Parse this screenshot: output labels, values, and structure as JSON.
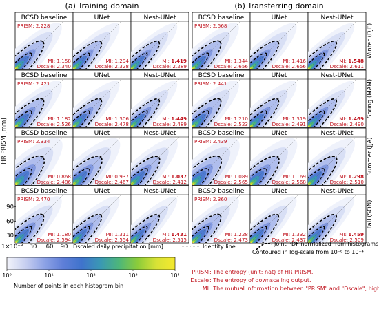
{
  "chart_data": {
    "type": "heatmap",
    "domains": [
      "(a) Training domain",
      "(b) Transferring domain"
    ],
    "methods": [
      "BCSD baseline",
      "UNet",
      "Nest-UNet"
    ],
    "seasons": [
      "Winter (DJF)",
      "Spring (MAM)",
      "Summer (JJA)",
      "Fall (SON)"
    ],
    "prism_label": "PRISM: ",
    "mi_label": "MI: ",
    "dscale_label": "Dscale: ",
    "stats": [
      {
        "season": "Winter (DJF)",
        "domains": [
          {
            "prism": "2.228",
            "mi": [
              "1.158",
              "1.294",
              "1.419"
            ],
            "dscale": [
              "2.340",
              "2.328",
              "2.289"
            ]
          },
          {
            "prism": "2.568",
            "mi": [
              "1.344",
              "1.416",
              "1.548"
            ],
            "dscale": [
              "2.656",
              "2.656",
              "2.611"
            ]
          }
        ]
      },
      {
        "season": "Spring (MAM)",
        "domains": [
          {
            "prism": "2.421",
            "mi": [
              "1.182",
              "1.306",
              "1.449"
            ],
            "dscale": [
              "2.526",
              "2.478",
              "2.489"
            ]
          },
          {
            "prism": "2.441",
            "mi": [
              "1.210",
              "1.319",
              "1.469"
            ],
            "dscale": [
              "2.523",
              "2.491",
              "2.490"
            ]
          }
        ]
      },
      {
        "season": "Summer (JJA)",
        "domains": [
          {
            "prism": "2.334",
            "mi": [
              "0.868",
              "0.937",
              "1.037"
            ],
            "dscale": [
              "2.486",
              "2.467",
              "2.412"
            ]
          },
          {
            "prism": "2.439",
            "mi": [
              "1.089",
              "1.169",
              "1.298"
            ],
            "dscale": [
              "2.565",
              "2.568",
              "2.510"
            ]
          }
        ]
      },
      {
        "season": "Fall (SON)",
        "domains": [
          {
            "prism": "2.470",
            "mi": [
              "1.180",
              "1.311",
              "1.431"
            ],
            "dscale": [
              "2.594",
              "2.554",
              "2.515"
            ]
          },
          {
            "prism": "2.360",
            "mi": [
              "1.228",
              "1.332",
              "1.459"
            ],
            "dscale": [
              "2.473",
              "2.437",
              "2.509"
            ]
          }
        ]
      }
    ],
    "best_method_index": 2,
    "ylabel": "HR PRISM [mm]",
    "xlabel": "Dscaled daily precipitation [mm]",
    "xscale_note": "1×10⁻³",
    "x_ticks": [
      "30",
      "60",
      "90"
    ],
    "y_ticks": [
      "90",
      "60",
      "30"
    ],
    "colorbar": {
      "label": "Number of points in each histogram bin",
      "scale": "log",
      "ticks": [
        "10⁰",
        "10¹",
        "10²",
        "10³",
        "10⁴"
      ],
      "colors": [
        "#f3f4fb",
        "#c7cff0",
        "#8ea3e6",
        "#5f7fd8",
        "#3f73cc",
        "#3a98b4",
        "#4db67a",
        "#8ccc3a",
        "#d8e236",
        "#f5e92e"
      ]
    },
    "legend": {
      "identity": "Identity line",
      "contour_line1": "Joint PDF normalized from histograms.",
      "contour_line2": "Contoured in log-scale from 10⁻⁶ to 10⁻⁴"
    },
    "notes": [
      {
        "key": "PRISM",
        "text": " : The entropy (unit: nat) of HR PRISM."
      },
      {
        "key": "Dscale",
        "text": " : The entropy of downscaling output."
      },
      {
        "key": "MI",
        "text": " : The mutual information between \"PRISM\" and \"Dscale\", higher is better."
      }
    ]
  }
}
